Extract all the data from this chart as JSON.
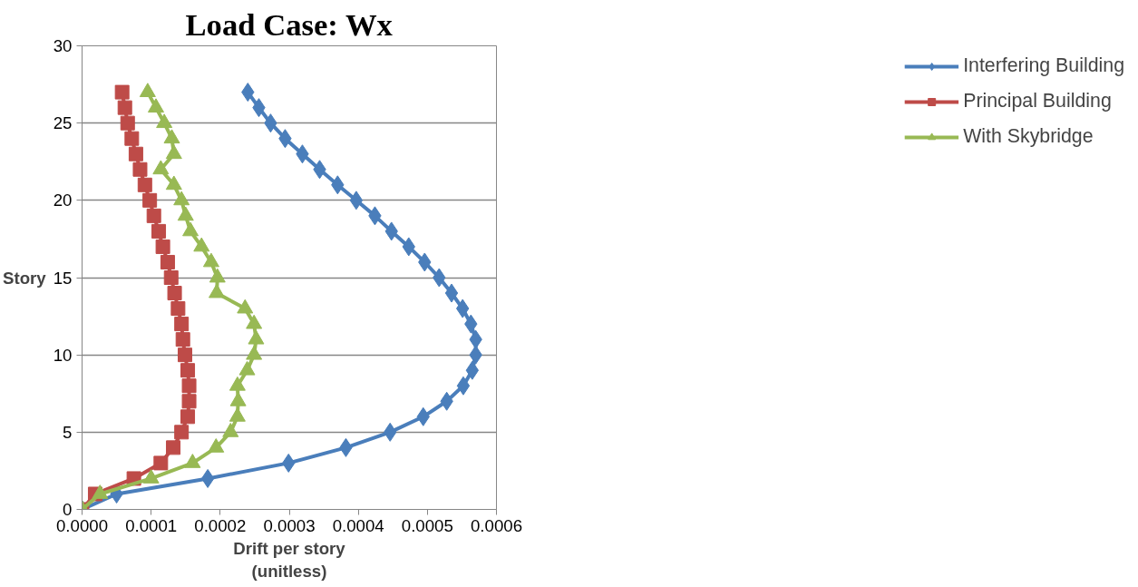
{
  "chart_data": {
    "type": "line",
    "title": "Load Case: Wx",
    "xlabel": "Drift per story\n(unitless)",
    "ylabel": "Story",
    "x": [
      0,
      1,
      2,
      3,
      4,
      5,
      6,
      7,
      8,
      9,
      10,
      11,
      12,
      13,
      14,
      15,
      16,
      17,
      18,
      19,
      20,
      21,
      22,
      23,
      24,
      25,
      26,
      27
    ],
    "orientation": "horizontal",
    "series": [
      {
        "name": "Interfering Building",
        "color": "#4a7ebb",
        "marker": "diamond",
        "values": [
          0,
          5e-05,
          0.000182,
          0.000299,
          0.000382,
          0.000446,
          0.000494,
          0.000528,
          0.000552,
          0.000565,
          0.00057,
          0.00057,
          0.000563,
          0.000551,
          0.000535,
          0.000517,
          0.000496,
          0.000473,
          0.000448,
          0.000424,
          0.000397,
          0.00037,
          0.000344,
          0.000319,
          0.000294,
          0.000273,
          0.000256,
          0.00024
        ]
      },
      {
        "name": "Principal Building",
        "color": "#be4b48",
        "marker": "square",
        "values": [
          0,
          1.9e-05,
          7.5e-05,
          0.000114,
          0.000132,
          0.000144,
          0.000153,
          0.000155,
          0.000155,
          0.000153,
          0.000149,
          0.000146,
          0.000144,
          0.000139,
          0.000134,
          0.000129,
          0.000124,
          0.000117,
          0.000111,
          0.000104,
          9.8e-05,
          9.1e-05,
          8.4e-05,
          7.8e-05,
          7.2e-05,
          6.6e-05,
          6.2e-05,
          5.8e-05
        ]
      },
      {
        "name": "With Skybridge",
        "color": "#98b954",
        "marker": "triangle",
        "values": [
          0,
          2.6e-05,
          0.0001,
          0.00016,
          0.000194,
          0.000215,
          0.000225,
          0.000226,
          0.000225,
          0.000239,
          0.000249,
          0.000252,
          0.000249,
          0.000236,
          0.000195,
          0.000196,
          0.000187,
          0.000173,
          0.000157,
          0.00015,
          0.000144,
          0.000133,
          0.000114,
          0.000133,
          0.00013,
          0.000119,
          0.000107,
          9.5e-05
        ]
      }
    ],
    "xlim": [
      0,
      0.0006
    ],
    "xticks": [
      {
        "value": 0,
        "label": "0.0000"
      },
      {
        "value": 0.0001,
        "label": "0.0001"
      },
      {
        "value": 0.0002,
        "label": "0.0002"
      },
      {
        "value": 0.0003,
        "label": "0.0003"
      },
      {
        "value": 0.0004,
        "label": "0.0004"
      },
      {
        "value": 0.0005,
        "label": "0.0005"
      },
      {
        "value": 0.0006,
        "label": "0.0006"
      }
    ],
    "ylim": [
      0,
      30
    ],
    "yticks": [
      0,
      5,
      10,
      15,
      20,
      25,
      30
    ],
    "grid": "y",
    "legend": "right",
    "line_style": "solid"
  }
}
